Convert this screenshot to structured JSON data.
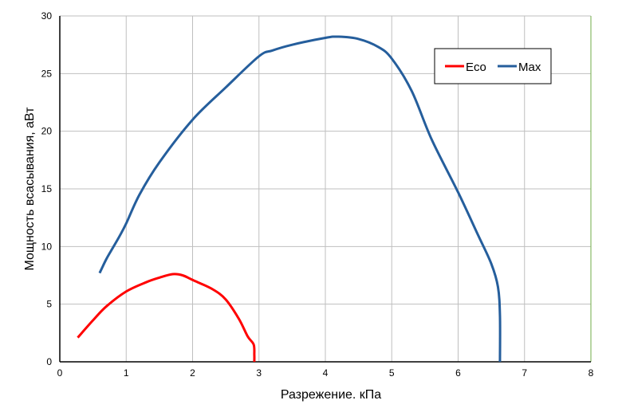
{
  "chart_data": {
    "type": "line",
    "title": "",
    "xlabel": "Разрежение. кПа",
    "ylabel": "Мощность всасывания, аВт",
    "xlim": [
      0,
      8
    ],
    "ylim": [
      0,
      30
    ],
    "xticks": [
      0,
      1,
      2,
      3,
      4,
      5,
      6,
      7,
      8
    ],
    "yticks": [
      0,
      5,
      10,
      15,
      20,
      25,
      30
    ],
    "grid": true,
    "legend_position": "top-right",
    "series": [
      {
        "name": "Eco",
        "color": "#ff0000",
        "x": [
          0.27,
          0.5,
          0.7,
          1.0,
          1.3,
          1.5,
          1.7,
          1.85,
          2.0,
          2.3,
          2.5,
          2.7,
          2.83,
          2.92,
          2.93,
          2.93
        ],
        "y": [
          2.1,
          3.6,
          4.8,
          6.1,
          6.9,
          7.3,
          7.6,
          7.5,
          7.1,
          6.3,
          5.4,
          3.7,
          2.2,
          1.5,
          0.6,
          0
        ]
      },
      {
        "name": "Max",
        "color": "#255e9c",
        "x": [
          0.6,
          0.7,
          0.8,
          0.9,
          1.0,
          1.2,
          1.5,
          2.0,
          2.5,
          3.0,
          3.2,
          3.5,
          4.0,
          4.2,
          4.5,
          4.8,
          5.0,
          5.3,
          5.6,
          6.0,
          6.3,
          6.5,
          6.6,
          6.63,
          6.63
        ],
        "y": [
          7.7,
          8.9,
          9.9,
          10.9,
          12,
          14.5,
          17.3,
          21,
          23.8,
          26.5,
          27,
          27.5,
          28.1,
          28.2,
          28,
          27.3,
          26.3,
          23.5,
          19.3,
          14.7,
          11,
          8.5,
          6.5,
          4,
          0
        ]
      }
    ]
  }
}
